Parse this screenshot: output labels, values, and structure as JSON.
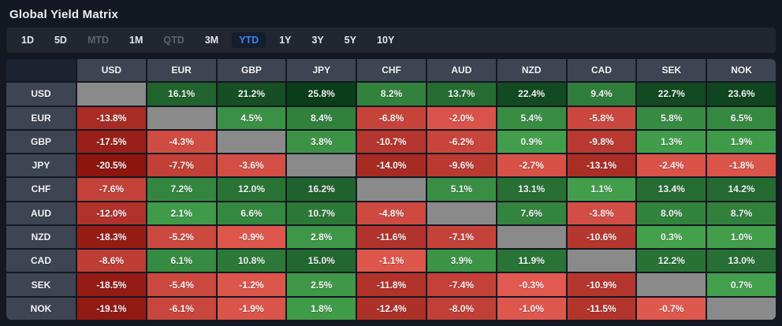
{
  "title": "Global Yield Matrix",
  "period_tabs": [
    {
      "label": "1D",
      "state": "normal"
    },
    {
      "label": "5D",
      "state": "normal"
    },
    {
      "label": "MTD",
      "state": "disabled"
    },
    {
      "label": "1M",
      "state": "normal"
    },
    {
      "label": "QTD",
      "state": "disabled"
    },
    {
      "label": "3M",
      "state": "normal"
    },
    {
      "label": "YTD",
      "state": "active"
    },
    {
      "label": "1Y",
      "state": "normal"
    },
    {
      "label": "3Y",
      "state": "normal"
    },
    {
      "label": "5Y",
      "state": "normal"
    },
    {
      "label": "10Y",
      "state": "normal"
    }
  ],
  "colors": {
    "accent_blue": "#3b82f6",
    "tab_text": "#e4e7ea",
    "tab_disabled": "#5c6370",
    "header_cell": "#3d4452",
    "corner_cell": "#1b2230",
    "neutral_cell": "#8a8a8a",
    "positive_low": "#44a24d",
    "positive_high": "#0a3c1a",
    "negative_low": "#e25a50",
    "negative_high": "#8a140d"
  },
  "chart_data": {
    "type": "heatmap",
    "title": "Global Yield Matrix",
    "unit": "%",
    "selected_period": "YTD",
    "rows": [
      "USD",
      "EUR",
      "GBP",
      "JPY",
      "CHF",
      "AUD",
      "NZD",
      "CAD",
      "SEK",
      "NOK"
    ],
    "columns": [
      "USD",
      "EUR",
      "GBP",
      "JPY",
      "CHF",
      "AUD",
      "NZD",
      "CAD",
      "SEK",
      "NOK"
    ],
    "matrix": [
      [
        null,
        16.1,
        21.2,
        25.8,
        8.2,
        13.7,
        22.4,
        9.4,
        22.7,
        23.6
      ],
      [
        -13.8,
        null,
        4.5,
        8.4,
        -6.8,
        -2.0,
        5.4,
        -5.8,
        5.8,
        6.5
      ],
      [
        -17.5,
        -4.3,
        null,
        3.8,
        -10.7,
        -6.2,
        0.9,
        -9.8,
        1.3,
        1.9
      ],
      [
        -20.5,
        -7.7,
        -3.6,
        null,
        -14.0,
        -9.6,
        -2.7,
        -13.1,
        -2.4,
        -1.8
      ],
      [
        -7.6,
        7.2,
        12.0,
        16.2,
        null,
        5.1,
        13.1,
        1.1,
        13.4,
        14.2
      ],
      [
        -12.0,
        2.1,
        6.6,
        10.7,
        -4.8,
        null,
        7.6,
        -3.8,
        8.0,
        8.7
      ],
      [
        -18.3,
        -5.2,
        -0.9,
        2.8,
        -11.6,
        -7.1,
        null,
        -10.6,
        0.3,
        1.0
      ],
      [
        -8.6,
        6.1,
        10.8,
        15.0,
        -1.1,
        3.9,
        11.9,
        null,
        12.2,
        13.0
      ],
      [
        -18.5,
        -5.4,
        -1.2,
        2.5,
        -11.8,
        -7.4,
        -0.3,
        -10.9,
        null,
        0.7
      ],
      [
        -19.1,
        -6.1,
        -1.9,
        1.8,
        -12.4,
        -8.0,
        -1.0,
        -11.5,
        -0.7,
        null
      ]
    ],
    "color_scale": {
      "positive_max": 26,
      "negative_max": 21,
      "positive_low": "#44a24d",
      "positive_high": "#0a3c1a",
      "negative_low": "#e25a50",
      "negative_high": "#8a140d",
      "neutral": "#8a8a8a"
    }
  }
}
